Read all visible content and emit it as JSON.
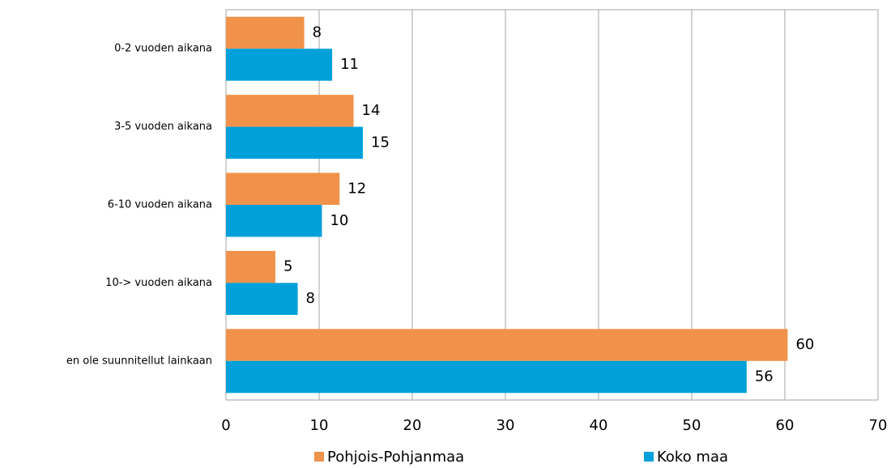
{
  "chart_data": {
    "type": "hbar",
    "categories": [
      "0-2 vuoden aikana",
      "3-5 vuoden aikana",
      "6-10 vuoden aikana",
      "10-> vuoden aikana",
      "en ole suunnitellut  lainkaan"
    ],
    "series": [
      {
        "name": "Pohjois-Pohjanmaa",
        "color": "#f0924a",
        "values": [
          8.4,
          13.7,
          12.2,
          5.3,
          60.3
        ],
        "value_labels": [
          "8",
          "14",
          "12",
          "5",
          "60"
        ]
      },
      {
        "name": "Koko maa",
        "color": "#00a0da",
        "values": [
          11.4,
          14.7,
          10.3,
          7.7,
          55.9
        ],
        "value_labels": [
          "11",
          "15",
          "10",
          "8",
          "56"
        ]
      }
    ],
    "xlim": [
      0,
      70
    ],
    "xticks": [
      0,
      10,
      20,
      30,
      40,
      50,
      60,
      70
    ],
    "grid": true,
    "legend": "bottom"
  }
}
